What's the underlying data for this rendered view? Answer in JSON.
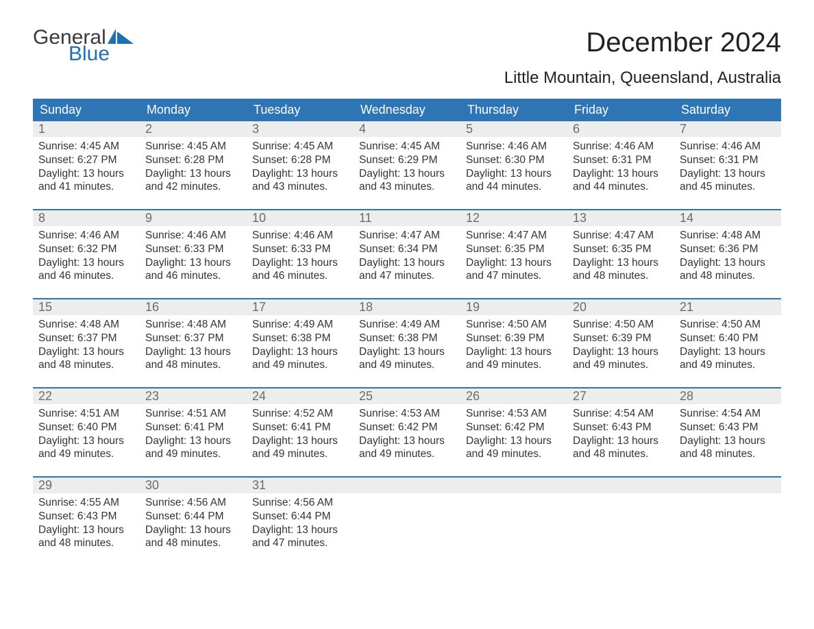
{
  "logo": {
    "line1": "General",
    "line2": "Blue"
  },
  "title": "December 2024",
  "subtitle": "Little Mountain, Queensland, Australia",
  "colors": {
    "header_bg": "#2e75b6",
    "header_text": "#ffffff",
    "daynum_bg": "#ededed",
    "daynum_text": "#6b6b6b",
    "body_text": "#333333",
    "logo_gray": "#3a3a3a",
    "logo_blue": "#1f6fb2",
    "page_bg": "#ffffff"
  },
  "fonts": {
    "title_size_pt": 30,
    "subtitle_size_pt": 18,
    "dayheader_size_pt": 14,
    "daynum_size_pt": 14,
    "body_size_pt": 12
  },
  "day_headers": [
    "Sunday",
    "Monday",
    "Tuesday",
    "Wednesday",
    "Thursday",
    "Friday",
    "Saturday"
  ],
  "labels": {
    "sunrise": "Sunrise:",
    "sunset": "Sunset:",
    "daylight": "Daylight:"
  },
  "weeks": [
    [
      {
        "day": "1",
        "sunrise": "4:45 AM",
        "sunset": "6:27 PM",
        "daylight": "13 hours and 41 minutes."
      },
      {
        "day": "2",
        "sunrise": "4:45 AM",
        "sunset": "6:28 PM",
        "daylight": "13 hours and 42 minutes."
      },
      {
        "day": "3",
        "sunrise": "4:45 AM",
        "sunset": "6:28 PM",
        "daylight": "13 hours and 43 minutes."
      },
      {
        "day": "4",
        "sunrise": "4:45 AM",
        "sunset": "6:29 PM",
        "daylight": "13 hours and 43 minutes."
      },
      {
        "day": "5",
        "sunrise": "4:46 AM",
        "sunset": "6:30 PM",
        "daylight": "13 hours and 44 minutes."
      },
      {
        "day": "6",
        "sunrise": "4:46 AM",
        "sunset": "6:31 PM",
        "daylight": "13 hours and 44 minutes."
      },
      {
        "day": "7",
        "sunrise": "4:46 AM",
        "sunset": "6:31 PM",
        "daylight": "13 hours and 45 minutes."
      }
    ],
    [
      {
        "day": "8",
        "sunrise": "4:46 AM",
        "sunset": "6:32 PM",
        "daylight": "13 hours and 46 minutes."
      },
      {
        "day": "9",
        "sunrise": "4:46 AM",
        "sunset": "6:33 PM",
        "daylight": "13 hours and 46 minutes."
      },
      {
        "day": "10",
        "sunrise": "4:46 AM",
        "sunset": "6:33 PM",
        "daylight": "13 hours and 46 minutes."
      },
      {
        "day": "11",
        "sunrise": "4:47 AM",
        "sunset": "6:34 PM",
        "daylight": "13 hours and 47 minutes."
      },
      {
        "day": "12",
        "sunrise": "4:47 AM",
        "sunset": "6:35 PM",
        "daylight": "13 hours and 47 minutes."
      },
      {
        "day": "13",
        "sunrise": "4:47 AM",
        "sunset": "6:35 PM",
        "daylight": "13 hours and 48 minutes."
      },
      {
        "day": "14",
        "sunrise": "4:48 AM",
        "sunset": "6:36 PM",
        "daylight": "13 hours and 48 minutes."
      }
    ],
    [
      {
        "day": "15",
        "sunrise": "4:48 AM",
        "sunset": "6:37 PM",
        "daylight": "13 hours and 48 minutes."
      },
      {
        "day": "16",
        "sunrise": "4:48 AM",
        "sunset": "6:37 PM",
        "daylight": "13 hours and 48 minutes."
      },
      {
        "day": "17",
        "sunrise": "4:49 AM",
        "sunset": "6:38 PM",
        "daylight": "13 hours and 49 minutes."
      },
      {
        "day": "18",
        "sunrise": "4:49 AM",
        "sunset": "6:38 PM",
        "daylight": "13 hours and 49 minutes."
      },
      {
        "day": "19",
        "sunrise": "4:50 AM",
        "sunset": "6:39 PM",
        "daylight": "13 hours and 49 minutes."
      },
      {
        "day": "20",
        "sunrise": "4:50 AM",
        "sunset": "6:39 PM",
        "daylight": "13 hours and 49 minutes."
      },
      {
        "day": "21",
        "sunrise": "4:50 AM",
        "sunset": "6:40 PM",
        "daylight": "13 hours and 49 minutes."
      }
    ],
    [
      {
        "day": "22",
        "sunrise": "4:51 AM",
        "sunset": "6:40 PM",
        "daylight": "13 hours and 49 minutes."
      },
      {
        "day": "23",
        "sunrise": "4:51 AM",
        "sunset": "6:41 PM",
        "daylight": "13 hours and 49 minutes."
      },
      {
        "day": "24",
        "sunrise": "4:52 AM",
        "sunset": "6:41 PM",
        "daylight": "13 hours and 49 minutes."
      },
      {
        "day": "25",
        "sunrise": "4:53 AM",
        "sunset": "6:42 PM",
        "daylight": "13 hours and 49 minutes."
      },
      {
        "day": "26",
        "sunrise": "4:53 AM",
        "sunset": "6:42 PM",
        "daylight": "13 hours and 49 minutes."
      },
      {
        "day": "27",
        "sunrise": "4:54 AM",
        "sunset": "6:43 PM",
        "daylight": "13 hours and 48 minutes."
      },
      {
        "day": "28",
        "sunrise": "4:54 AM",
        "sunset": "6:43 PM",
        "daylight": "13 hours and 48 minutes."
      }
    ],
    [
      {
        "day": "29",
        "sunrise": "4:55 AM",
        "sunset": "6:43 PM",
        "daylight": "13 hours and 48 minutes."
      },
      {
        "day": "30",
        "sunrise": "4:56 AM",
        "sunset": "6:44 PM",
        "daylight": "13 hours and 48 minutes."
      },
      {
        "day": "31",
        "sunrise": "4:56 AM",
        "sunset": "6:44 PM",
        "daylight": "13 hours and 47 minutes."
      },
      {
        "day": "",
        "sunrise": "",
        "sunset": "",
        "daylight": ""
      },
      {
        "day": "",
        "sunrise": "",
        "sunset": "",
        "daylight": ""
      },
      {
        "day": "",
        "sunrise": "",
        "sunset": "",
        "daylight": ""
      },
      {
        "day": "",
        "sunrise": "",
        "sunset": "",
        "daylight": ""
      }
    ]
  ]
}
